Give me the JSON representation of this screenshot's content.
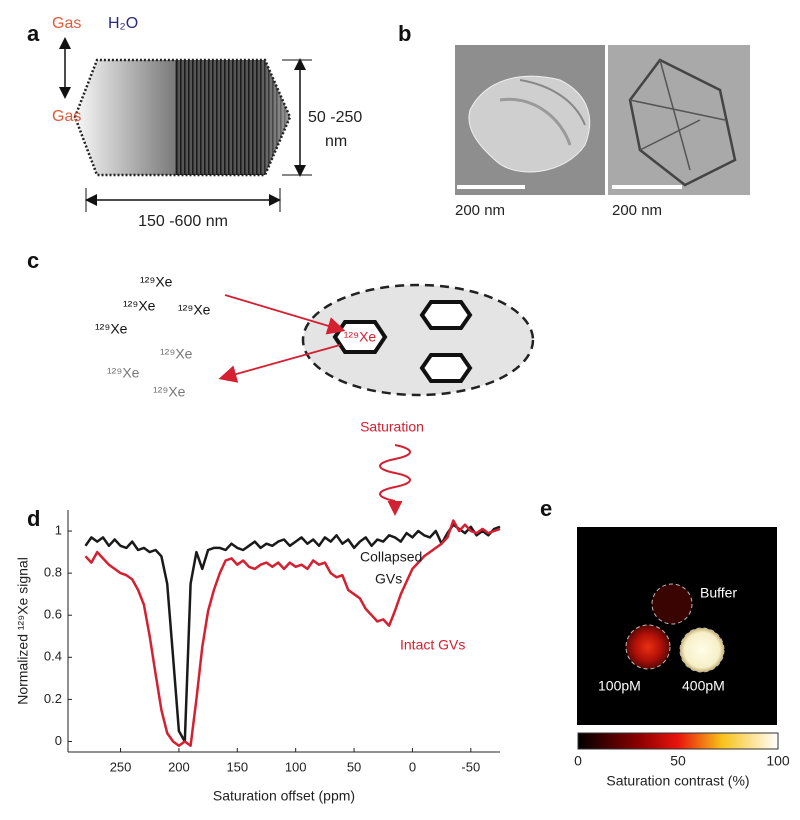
{
  "panel_labels": [
    "a",
    "b",
    "c",
    "d",
    "e"
  ],
  "panel_a": {
    "gas_top": "Gas",
    "water": "H₂O",
    "gas_inside": "Gas",
    "height": [
      "50 -250",
      "nm"
    ],
    "width": "150 -600 nm"
  },
  "panel_b": {
    "scale_bars": [
      "200 nm",
      "200 nm"
    ]
  },
  "panel_c": {
    "xenon_outside": [
      "¹²⁹Xe",
      "¹²⁹Xe",
      "¹²⁹Xe",
      "¹²⁹Xe",
      "¹²⁹Xe",
      "¹²⁹Xe",
      "¹²⁹Xe"
    ],
    "xenon_inside": "¹²⁹Xe",
    "saturation": "Saturation"
  },
  "chart_data": {
    "type": "line",
    "xlabel": "Saturation offset (ppm)",
    "ylabel": "Normalized ¹²⁹Xe signal",
    "x": [
      280,
      275,
      270,
      265,
      260,
      255,
      250,
      245,
      240,
      235,
      230,
      225,
      220,
      215,
      210,
      205,
      200,
      195,
      190,
      185,
      180,
      175,
      170,
      165,
      160,
      155,
      150,
      145,
      140,
      135,
      130,
      125,
      120,
      115,
      110,
      105,
      100,
      95,
      90,
      85,
      80,
      75,
      70,
      65,
      60,
      55,
      50,
      45,
      40,
      35,
      30,
      25,
      20,
      15,
      10,
      5,
      0,
      -5,
      -10,
      -15,
      -20,
      -25,
      -30,
      -35,
      -40,
      -45,
      -50,
      -55,
      -60,
      -65,
      -70,
      -75
    ],
    "series": [
      {
        "color": "#1a1a1a",
        "values": [
          0.93,
          0.97,
          0.95,
          0.97,
          0.93,
          0.96,
          0.93,
          0.92,
          0.95,
          0.91,
          0.92,
          0.9,
          0.91,
          0.88,
          0.75,
          0.4,
          0.05,
          0.0,
          0.75,
          0.9,
          0.82,
          0.91,
          0.92,
          0.92,
          0.91,
          0.94,
          0.92,
          0.91,
          0.93,
          0.95,
          0.92,
          0.94,
          0.93,
          0.95,
          0.96,
          0.93,
          0.95,
          0.97,
          0.94,
          0.96,
          0.93,
          0.97,
          0.95,
          0.98,
          0.94,
          0.96,
          0.92,
          0.95,
          0.97,
          0.93,
          0.96,
          0.95,
          0.98,
          0.97,
          0.95,
          0.99,
          0.97,
          1.0,
          0.98,
          0.97,
          1.0,
          0.94,
          0.99,
          1.03,
          1.01,
          0.99,
          1.02,
          0.98,
          1.0,
          0.98,
          1.01,
          1.02
        ]
      },
      {
        "color": "#d42030",
        "values": [
          0.88,
          0.85,
          0.9,
          0.87,
          0.84,
          0.82,
          0.8,
          0.79,
          0.77,
          0.72,
          0.65,
          0.5,
          0.32,
          0.15,
          0.04,
          0.0,
          -0.02,
          0.0,
          -0.02,
          0.2,
          0.45,
          0.62,
          0.72,
          0.8,
          0.86,
          0.87,
          0.84,
          0.86,
          0.83,
          0.82,
          0.84,
          0.85,
          0.83,
          0.85,
          0.82,
          0.85,
          0.83,
          0.84,
          0.82,
          0.86,
          0.84,
          0.85,
          0.8,
          0.78,
          0.79,
          0.72,
          0.7,
          0.68,
          0.63,
          0.6,
          0.57,
          0.58,
          0.55,
          0.62,
          0.7,
          0.76,
          0.82,
          0.85,
          0.88,
          0.9,
          0.92,
          0.94,
          0.97,
          1.05,
          1.0,
          1.03,
          1.0,
          0.99,
          1.01,
          0.99,
          1.0,
          1.01
        ]
      }
    ],
    "annotations": [
      "Collapsed",
      "GVs",
      "Intact GVs"
    ],
    "xlim": [
      295,
      -75
    ],
    "xticks": [
      250,
      200,
      150,
      100,
      50,
      0,
      -50
    ],
    "ylim": [
      -0.05,
      1.1
    ],
    "yticks": [
      0,
      0.2,
      0.4,
      0.6,
      0.8,
      1
    ]
  },
  "panel_e": {
    "labels": [
      "Buffer",
      "100pM",
      "400pM"
    ],
    "colorbar": {
      "clim": [
        0,
        100
      ],
      "ticks": [
        0,
        50,
        100
      ],
      "label": "Saturation contrast (%)"
    }
  }
}
